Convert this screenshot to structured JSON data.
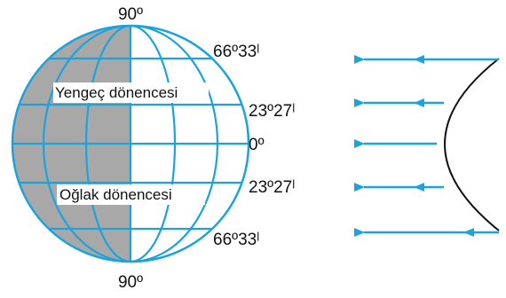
{
  "diagram": {
    "pole_top": "90º",
    "pole_bottom": "90º",
    "lat_arctic": "66º33ˡ",
    "lat_cancer": "23º27ˡ",
    "lat_equator": "0º",
    "lat_capricorn": "23º27ˡ",
    "lat_antarctic": "66º33ˡ",
    "tropic_cancer": "Yengeç dönencesi",
    "tropic_capricorn": "Oğlak dönencesi"
  },
  "colors": {
    "grid": "#1ba3dc",
    "night": "#a8a8a8",
    "outline": "#111111"
  }
}
